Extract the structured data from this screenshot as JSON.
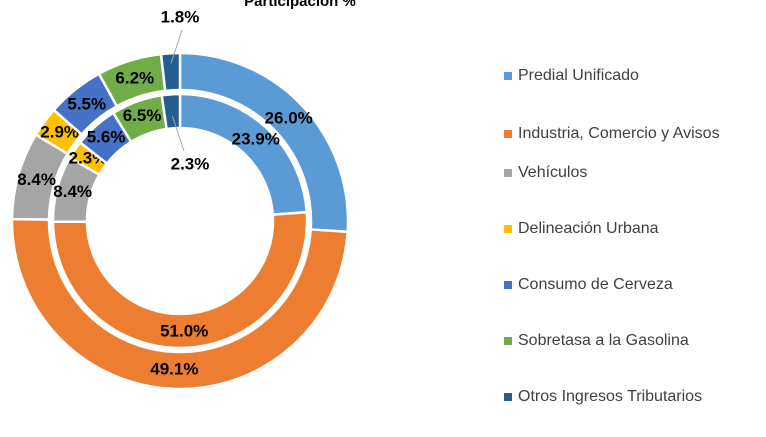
{
  "chart_data": {
    "type": "donut",
    "title": "Participación %",
    "categories": [
      "Predial Unificado",
      "Industria, Comercio y Avisos",
      "Vehículos",
      "Delineación Urbana",
      "Consumo de Cerveza",
      "Sobretasa a la Gasolina",
      "Otros Ingresos Tributarios"
    ],
    "colors": [
      "#5b9bd5",
      "#ed7d31",
      "#a5a5a5",
      "#ffc000",
      "#4472c4",
      "#70ad47",
      "#255e91"
    ],
    "series": [
      {
        "values": [
          26.0,
          49.1,
          8.4,
          2.9,
          5.5,
          6.2,
          1.8
        ],
        "value_labels": [
          "26.0%",
          "49.1%",
          "8.4%",
          "2.9%",
          "5.5%",
          "6.2%",
          "1.8%"
        ]
      },
      {
        "values": [
          23.9,
          51.0,
          8.4,
          2.3,
          5.6,
          6.5,
          2.3
        ],
        "value_labels": [
          "23.9%",
          "51.0%",
          "8.4%",
          "2.3%",
          "5.6%",
          "6.5%",
          "2.3%"
        ]
      }
    ],
    "legend": "right"
  }
}
